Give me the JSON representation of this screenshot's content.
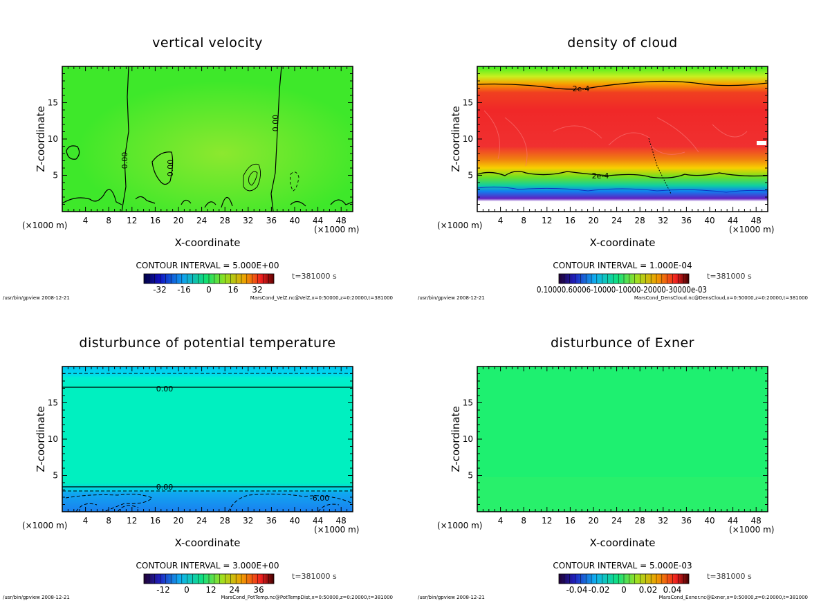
{
  "panels": [
    {
      "title": "vertical velocity",
      "xlabel": "X-coordinate",
      "ylabel": "Z-coordinate",
      "x_unit_left": "(×1000 m)",
      "x_unit_right": "(×1000 m)",
      "contour_interval": "CONTOUR INTERVAL = 5.000E+00",
      "time_label": "t=381000 s",
      "colorbar_ticks": [
        "-32",
        "-16",
        "0",
        "16",
        "32"
      ],
      "contour_labels": [
        "0.00",
        "0.00",
        "0.00"
      ],
      "footer_left": "/usr/bin/gpview  2008-12-21",
      "footer_right": "MarsCond_VelZ.nc@VelZ,x=0:50000,z=0:20000,t=381000"
    },
    {
      "title": "density of cloud",
      "xlabel": "X-coordinate",
      "ylabel": "Z-coordinate",
      "x_unit_left": "(×1000 m)",
      "x_unit_right": "(×1000 m)",
      "contour_interval": "CONTOUR INTERVAL = 1.000E-04",
      "time_label": "t=381000 s",
      "colorbar_ticks": [
        "0.10000.60006-10000-10000-20000-30000e-03"
      ],
      "contour_labels": [
        "2e-4",
        "2e-4"
      ],
      "footer_left": "/usr/bin/gpview  2008-12-21",
      "footer_right": "MarsCond_DensCloud.nc@DensCloud,x=0:50000,z=0:20000,t=381000"
    },
    {
      "title": "disturbunce of potential temperature",
      "xlabel": "X-coordinate",
      "ylabel": "Z-coordinate",
      "x_unit_left": "(×1000 m)",
      "x_unit_right": "(×1000 m)",
      "contour_interval": "CONTOUR INTERVAL = 3.000E+00",
      "time_label": "t=381000 s",
      "colorbar_ticks": [
        "-12",
        "0",
        "12",
        "24",
        "36"
      ],
      "contour_labels": [
        "0.00",
        "0.00",
        "-6.00"
      ],
      "footer_left": "/usr/bin/gpview  2008-12-21",
      "footer_right": "MarsCond_PotTemp.nc@PotTempDist,x=0:50000,z=0:20000,t=381000"
    },
    {
      "title": "disturbunce of Exner",
      "xlabel": "X-coordinate",
      "ylabel": "Z-coordinate",
      "x_unit_left": "(×1000 m)",
      "x_unit_right": "(×1000 m)",
      "contour_interval": "CONTOUR INTERVAL = 5.000E-03",
      "time_label": "t=381000 s",
      "colorbar_ticks": [
        "-0.04",
        "-0.02",
        "0",
        "0.02",
        "0.04"
      ],
      "contour_labels": [],
      "footer_left": "/usr/bin/gpview  2008-12-21",
      "footer_right": "MarsCond_Exner.nc@Exner,x=0:50000,z=0:20000,t=381000"
    }
  ],
  "chart_data": [
    {
      "type": "heatmap",
      "title": "vertical velocity",
      "xlabel": "X-coordinate",
      "ylabel": "Z-coordinate",
      "x_ticks": [
        4,
        8,
        12,
        16,
        20,
        24,
        28,
        32,
        36,
        40,
        44,
        48
      ],
      "y_ticks": [
        5,
        10,
        15
      ],
      "xlim": [
        0,
        50
      ],
      "ylim": [
        0,
        20
      ],
      "contour_interval": 5.0,
      "colorbar_range": [
        -40,
        40
      ],
      "colorbar_tick_values": [
        -32,
        -16,
        0,
        16,
        32
      ],
      "colors": {
        "field": "#3ee82a",
        "warm": "#8ee83a"
      }
    },
    {
      "type": "heatmap",
      "title": "density of cloud",
      "xlabel": "X-coordinate",
      "ylabel": "Z-coordinate",
      "x_ticks": [
        4,
        8,
        12,
        16,
        20,
        24,
        28,
        32,
        36,
        40,
        44,
        48
      ],
      "y_ticks": [
        5,
        10,
        15
      ],
      "xlim": [
        0,
        50
      ],
      "ylim": [
        0,
        20
      ],
      "contour_interval": 0.0001,
      "contour_levels_labeled": [
        0.0002,
        0.0002
      ],
      "colors": {
        "low": "#2cf02c",
        "high": "#f02a2a",
        "mid": "#f5a800",
        "bottom": "#6a1fa8"
      }
    },
    {
      "type": "heatmap",
      "title": "disturbunce of potential temperature",
      "xlabel": "X-coordinate",
      "ylabel": "Z-coordinate",
      "x_ticks": [
        4,
        8,
        12,
        16,
        20,
        24,
        28,
        32,
        36,
        40,
        44,
        48
      ],
      "y_ticks": [
        5,
        10,
        15
      ],
      "xlim": [
        0,
        50
      ],
      "ylim": [
        0,
        20
      ],
      "contour_interval": 3.0,
      "colorbar_tick_values": [
        -12,
        0,
        12,
        24,
        36
      ],
      "colors": {
        "field": "#00f0c0",
        "top": "#00d8f0",
        "bottom": "#1a8cf0"
      }
    },
    {
      "type": "heatmap",
      "title": "disturbunce of Exner",
      "xlabel": "X-coordinate",
      "ylabel": "Z-coordinate",
      "x_ticks": [
        4,
        8,
        12,
        16,
        20,
        24,
        28,
        32,
        36,
        40,
        44,
        48
      ],
      "y_ticks": [
        5,
        10,
        15
      ],
      "xlim": [
        0,
        50
      ],
      "ylim": [
        0,
        20
      ],
      "contour_interval": 0.005,
      "colorbar_tick_values": [
        -0.04,
        -0.02,
        0,
        0.02,
        0.04
      ],
      "colors": {
        "field": "#1ef070"
      }
    }
  ]
}
